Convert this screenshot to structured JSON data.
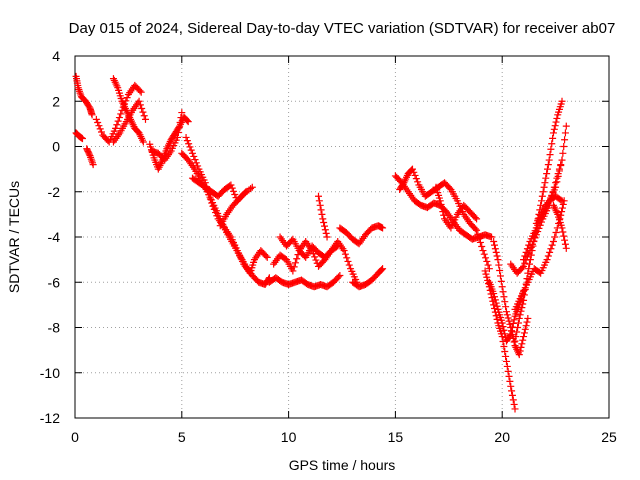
{
  "chart_data": {
    "type": "scatter",
    "title": "Day 015 of 2024, Sidereal Day-to-day VTEC variation (SDTVAR) for receiver ab07",
    "xlabel": "GPS time / hours",
    "ylabel": "SDTVAR / TECUs",
    "xlim": [
      0,
      25
    ],
    "ylim": [
      -12,
      4
    ],
    "xticks": [
      0,
      5,
      10,
      15,
      20,
      25
    ],
    "yticks": [
      -12,
      -10,
      -8,
      -6,
      -4,
      -2,
      0,
      2,
      4
    ],
    "grid": true,
    "marker": "plus",
    "color": "#ff0000",
    "series": [
      {
        "name": "",
        "x": [
          0.05,
          0.15,
          0.3,
          0.5,
          0.7,
          0.8
        ],
        "y": [
          3.1,
          2.6,
          2.2,
          2.0,
          1.7,
          1.4
        ]
      },
      {
        "name": "",
        "x": [
          0.05,
          0.2,
          0.35
        ],
        "y": [
          0.6,
          0.45,
          0.35
        ]
      },
      {
        "name": "",
        "x": [
          0.55,
          0.7,
          0.85
        ],
        "y": [
          -0.1,
          -0.4,
          -0.8
        ]
      },
      {
        "name": "",
        "x": [
          1.0,
          1.3,
          1.6,
          1.9,
          2.2,
          2.5,
          2.8,
          3.1
        ],
        "y": [
          1.2,
          0.5,
          0.2,
          0.8,
          1.6,
          2.3,
          2.7,
          2.4
        ]
      },
      {
        "name": "",
        "x": [
          1.8,
          2.0,
          2.2,
          2.4,
          2.6,
          2.8,
          3.0,
          3.2
        ],
        "y": [
          3.0,
          2.6,
          2.0,
          1.6,
          1.2,
          0.8,
          0.6,
          0.2
        ]
      },
      {
        "name": "",
        "x": [
          1.8,
          2.1,
          2.4,
          2.7,
          3.0,
          3.3
        ],
        "y": [
          0.2,
          0.6,
          1.1,
          1.6,
          2.0,
          1.2
        ]
      },
      {
        "name": "",
        "x": [
          3.5,
          3.7,
          3.9,
          4.1,
          4.3,
          4.5,
          4.7,
          4.9,
          5.1,
          5.3
        ],
        "y": [
          0.1,
          -0.5,
          -1.0,
          -0.6,
          -0.1,
          0.3,
          0.6,
          0.9,
          1.3,
          1.1
        ]
      },
      {
        "name": "",
        "x": [
          3.6,
          3.9,
          4.2,
          4.5,
          4.8,
          5.0
        ],
        "y": [
          -0.2,
          -0.3,
          -0.6,
          -0.2,
          0.4,
          1.5
        ]
      },
      {
        "name": "",
        "x": [
          5.0,
          5.3,
          5.6,
          5.9,
          6.2,
          6.5,
          6.8,
          7.1,
          7.4,
          7.7,
          8.0,
          8.3,
          8.6,
          8.9,
          9.1
        ],
        "y": [
          -0.3,
          -0.6,
          -1.0,
          -1.5,
          -2.0,
          -2.6,
          -3.2,
          -3.8,
          -4.3,
          -4.8,
          -5.3,
          -5.7,
          -6.0,
          -6.1,
          -5.8
        ]
      },
      {
        "name": "",
        "x": [
          5.2,
          5.5,
          5.8,
          6.1,
          6.4,
          6.7,
          7.0,
          7.3,
          7.6,
          7.9,
          8.2,
          8.4,
          8.7,
          9.0
        ],
        "y": [
          0.4,
          -0.3,
          -1.0,
          -1.6,
          -2.5,
          -3.2,
          -3.6,
          -4.0,
          -4.6,
          -5.2,
          -5.6,
          -5.0,
          -4.6,
          -4.9
        ]
      },
      {
        "name": "",
        "x": [
          5.5,
          5.8,
          6.1,
          6.4,
          6.7,
          7.0,
          7.3,
          7.6,
          7.9,
          8.3
        ],
        "y": [
          -1.4,
          -1.6,
          -1.8,
          -2.0,
          -2.2,
          -1.9,
          -1.7,
          -2.4,
          -2.1,
          -1.8
        ]
      },
      {
        "name": "",
        "x": [
          6.8,
          7.1,
          7.4,
          7.7,
          8.0
        ],
        "y": [
          -3.5,
          -3.0,
          -2.6,
          -2.3,
          -2.0
        ]
      },
      {
        "name": "",
        "x": [
          9.1,
          9.4,
          9.7,
          10.0,
          10.3,
          10.6,
          10.9,
          11.2,
          11.5,
          11.8,
          12.1,
          12.4
        ],
        "y": [
          -6.0,
          -5.8,
          -6.0,
          -6.1,
          -6.0,
          -5.9,
          -6.1,
          -6.2,
          -6.1,
          -6.2,
          -6.0,
          -5.7
        ]
      },
      {
        "name": "",
        "x": [
          9.3,
          9.6,
          9.9,
          10.2,
          10.5,
          10.8,
          11.1,
          11.4,
          11.7,
          12.0,
          12.3,
          12.6,
          12.9,
          13.2
        ],
        "y": [
          -5.2,
          -4.8,
          -5.0,
          -5.5,
          -4.6,
          -4.2,
          -4.6,
          -5.3,
          -5.0,
          -4.6,
          -4.2,
          -4.6,
          -5.4,
          -6.0
        ]
      },
      {
        "name": "",
        "x": [
          9.6,
          9.9,
          10.2,
          10.5,
          10.8,
          11.1,
          11.4,
          11.7,
          12.0,
          12.3
        ],
        "y": [
          -4.0,
          -4.4,
          -4.1,
          -4.6,
          -4.9,
          -4.4,
          -4.7,
          -4.9,
          -4.6,
          -4.4
        ]
      },
      {
        "name": "",
        "x": [
          12.4,
          12.7,
          13.0,
          13.3,
          13.6,
          13.9,
          14.2,
          14.4
        ],
        "y": [
          -3.6,
          -3.8,
          -4.1,
          -4.3,
          -3.9,
          -3.6,
          -3.5,
          -3.6
        ]
      },
      {
        "name": "",
        "x": [
          13.0,
          13.3,
          13.6,
          13.9,
          14.2,
          14.4
        ],
        "y": [
          -6.0,
          -6.2,
          -6.1,
          -5.9,
          -5.6,
          -5.4
        ]
      },
      {
        "name": "",
        "x": [
          11.4,
          11.6,
          11.8
        ],
        "y": [
          -2.2,
          -3.2,
          -4.0
        ]
      },
      {
        "name": "",
        "x": [
          15.0,
          15.3,
          15.6,
          15.9,
          16.2,
          16.5,
          16.8,
          17.1,
          17.4,
          17.7,
          18.0,
          18.3,
          18.6,
          18.9,
          19.2,
          19.5
        ],
        "y": [
          -1.3,
          -1.6,
          -2.0,
          -2.4,
          -2.6,
          -2.7,
          -2.5,
          -2.6,
          -2.9,
          -3.3,
          -3.7,
          -3.9,
          -4.1,
          -4.0,
          -3.9,
          -4.0
        ]
      },
      {
        "name": "",
        "x": [
          15.2,
          15.4,
          15.6,
          15.8,
          16.1,
          16.4,
          16.7,
          17.0,
          17.3,
          17.6,
          17.9,
          18.2,
          18.5,
          18.8,
          19.1,
          19.4
        ],
        "y": [
          -1.9,
          -1.6,
          -1.2,
          -1.0,
          -1.7,
          -2.2,
          -2.0,
          -1.8,
          -1.6,
          -1.9,
          -2.4,
          -3.0,
          -3.4,
          -3.7,
          -4.6,
          -5.4
        ]
      },
      {
        "name": "",
        "x": [
          16.9,
          17.1,
          17.3,
          17.6,
          17.9,
          18.2,
          18.5,
          18.8
        ],
        "y": [
          -1.8,
          -2.4,
          -3.2,
          -3.6,
          -3.0,
          -2.6,
          -2.9,
          -3.2
        ]
      },
      {
        "name": "",
        "x": [
          19.2,
          19.4,
          19.6,
          19.8,
          20.0,
          20.2,
          20.4,
          20.6
        ],
        "y": [
          -5.5,
          -6.2,
          -7.0,
          -7.8,
          -8.4,
          -9.5,
          -10.6,
          -11.6
        ]
      },
      {
        "name": "",
        "x": [
          19.4,
          19.6,
          19.8,
          20.0,
          20.2,
          20.4,
          20.6,
          20.8,
          21.0
        ],
        "y": [
          -6.0,
          -6.5,
          -7.2,
          -7.8,
          -8.6,
          -8.3,
          -7.5,
          -7.0,
          -6.4
        ]
      },
      {
        "name": "",
        "x": [
          19.6,
          19.8,
          20.0,
          20.2,
          20.4,
          20.6,
          20.8,
          21.0,
          21.2
        ],
        "y": [
          -4.2,
          -5.0,
          -6.2,
          -7.3,
          -8.0,
          -8.8,
          -9.2,
          -8.4,
          -7.6
        ]
      },
      {
        "name": "",
        "x": [
          20.6,
          20.8,
          21.0,
          21.2,
          21.4,
          21.6,
          21.8,
          22.0,
          22.2,
          22.4,
          22.6,
          22.8
        ],
        "y": [
          -8.6,
          -7.6,
          -6.8,
          -5.6,
          -4.6,
          -3.6,
          -2.6,
          -1.6,
          -0.6,
          0.6,
          1.4,
          2.0
        ]
      },
      {
        "name": "",
        "x": [
          20.4,
          20.7,
          21.0,
          21.3,
          21.6,
          21.9,
          22.2,
          22.5,
          22.8
        ],
        "y": [
          -5.2,
          -5.6,
          -5.3,
          -4.6,
          -3.9,
          -3.2,
          -2.6,
          -1.6,
          -0.6
        ]
      },
      {
        "name": "",
        "x": [
          20.6,
          20.9,
          21.2,
          21.5,
          21.8,
          22.1,
          22.4,
          22.7,
          22.9
        ],
        "y": [
          -7.2,
          -6.6,
          -6.0,
          -5.4,
          -5.6,
          -5.0,
          -4.2,
          -3.2,
          -2.4
        ]
      },
      {
        "name": "",
        "x": [
          21.0,
          21.3,
          21.6,
          21.9,
          22.2,
          22.5,
          22.8,
          23.0
        ],
        "y": [
          -5.0,
          -4.2,
          -3.6,
          -3.0,
          -2.4,
          -1.8,
          -0.6,
          0.9
        ]
      },
      {
        "name": "",
        "x": [
          22.4,
          22.6,
          22.8,
          23.0
        ],
        "y": [
          -2.6,
          -3.0,
          -3.6,
          -4.5
        ]
      },
      {
        "name": "",
        "x": [
          21.6,
          21.9,
          22.2,
          22.5,
          22.8
        ],
        "y": [
          -3.4,
          -2.8,
          -2.4,
          -2.2,
          -2.4
        ]
      }
    ]
  }
}
